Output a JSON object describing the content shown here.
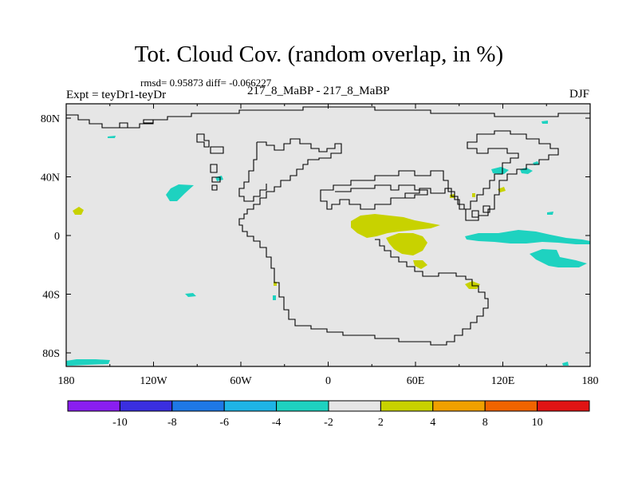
{
  "title": "Tot. Cloud Cov. (random overlap, in %)",
  "stats": "rmsd= 0.95873 diff= -0.066227",
  "experiment": "Expt = teyDr1-teyDr",
  "center_label": "217_8_MaBP - 217_8_MaBP",
  "season": "DJF",
  "map": {
    "lon_ticks": [
      "180",
      "120W",
      "60W",
      "0",
      "60E",
      "120E",
      "180"
    ],
    "lat_ticks": [
      "80N",
      "40N",
      "0",
      "40S",
      "80S"
    ],
    "background_color": "#e6e6e6"
  },
  "colorbar": {
    "colors": [
      "#8a1ef0",
      "#3a2fe0",
      "#1e78e6",
      "#1eb4e6",
      "#1ed2c0",
      "#e6e6e6",
      "#c8d200",
      "#f0a000",
      "#f06400",
      "#e01414"
    ],
    "labels": [
      "-10",
      "-8",
      "-6",
      "-4",
      "-2",
      "2",
      "4",
      "8",
      "10"
    ]
  }
}
